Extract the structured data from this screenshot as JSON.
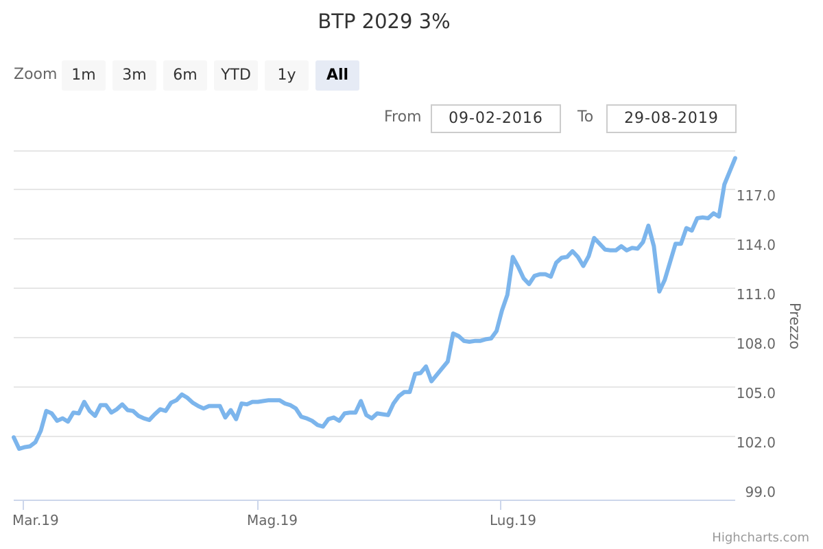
{
  "toolbar": {
    "zoom_label": "Zoom",
    "buttons": [
      "1m",
      "3m",
      "6m",
      "YTD",
      "1y",
      "All"
    ],
    "active": "All",
    "from_label": "From",
    "from_value": "09-02-2016",
    "to_label": "To",
    "to_value": "29-08-2019"
  },
  "credits": "Highcharts.com",
  "colors": {
    "series": "#7cb5ec",
    "grid": "#e6e6e6",
    "axis": "#ccd6eb"
  },
  "chart_data": {
    "type": "line",
    "title": "BTP 2029 3%",
    "ylabel": "Prezzo",
    "ylim": [
      99,
      119
    ],
    "yticks": [
      "99.0",
      "102.0",
      "105.0",
      "108.0",
      "111.0",
      "114.0",
      "117.0"
    ],
    "xticks": [
      "Mar.19",
      "Mag.19",
      "Lug.19"
    ],
    "grid": true,
    "series": [
      {
        "values": [
          101.95,
          101.25,
          101.35,
          101.4,
          101.65,
          102.35,
          103.55,
          103.4,
          102.95,
          103.1,
          102.9,
          103.45,
          103.4,
          104.1,
          103.55,
          103.25,
          103.9,
          103.9,
          103.45,
          103.65,
          103.95,
          103.6,
          103.55,
          103.25,
          103.1,
          103.0,
          103.35,
          103.65,
          103.55,
          104.05,
          104.2,
          104.55,
          104.35,
          104.05,
          103.85,
          103.7,
          103.85,
          103.85,
          103.85,
          103.15,
          103.6,
          103.05,
          104.0,
          103.95,
          104.1,
          104.1,
          104.15,
          104.2,
          104.2,
          104.2,
          104.0,
          103.9,
          103.7,
          103.2,
          103.1,
          102.95,
          102.7,
          102.6,
          103.05,
          103.15,
          102.95,
          103.4,
          103.45,
          103.45,
          104.15,
          103.3,
          103.1,
          103.4,
          103.35,
          103.3,
          104.0,
          104.45,
          104.7,
          104.7,
          105.8,
          105.85,
          106.25,
          105.35,
          105.75,
          106.15,
          106.55,
          108.25,
          108.1,
          107.8,
          107.75,
          107.8,
          107.8,
          107.9,
          107.95,
          108.4,
          109.65,
          110.6,
          112.9,
          112.3,
          111.6,
          111.25,
          111.75,
          111.85,
          111.85,
          111.7,
          112.55,
          112.85,
          112.9,
          113.25,
          112.9,
          112.35,
          112.95,
          114.05,
          113.7,
          113.35,
          113.3,
          113.3,
          113.55,
          113.3,
          113.45,
          113.4,
          113.8,
          114.8,
          113.55,
          110.8,
          111.5,
          112.6,
          113.7,
          113.7,
          114.65,
          114.5,
          115.25,
          115.3,
          115.25,
          115.55,
          115.35,
          117.3,
          118.1,
          118.9
        ]
      }
    ]
  }
}
